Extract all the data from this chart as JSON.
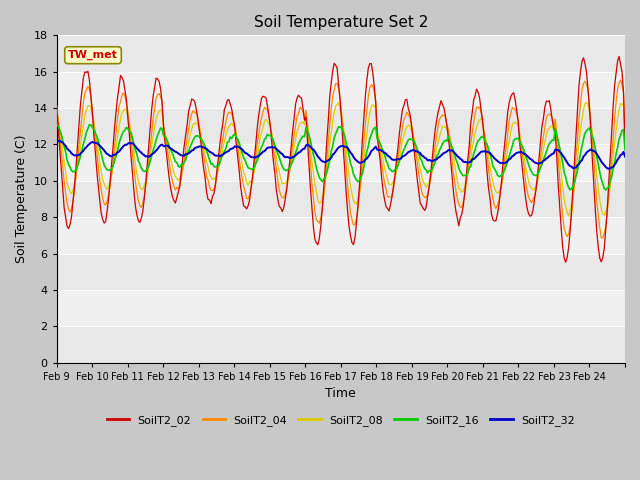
{
  "title": "Soil Temperature Set 2",
  "xlabel": "Time",
  "ylabel": "Soil Temperature (C)",
  "ylim": [
    0,
    18
  ],
  "yticks": [
    0,
    2,
    4,
    6,
    8,
    10,
    12,
    14,
    16,
    18
  ],
  "colors": {
    "SoilT2_02": "#cc0000",
    "SoilT2_04": "#ff8800",
    "SoilT2_08": "#ddcc00",
    "SoilT2_16": "#00cc00",
    "SoilT2_32": "#0000cc"
  },
  "xtick_labels": [
    "Feb 9",
    "Feb 10",
    "Feb 11",
    "Feb 12",
    "Feb 13",
    "Feb 14",
    "Feb 15",
    "Feb 16",
    "Feb 17",
    "Feb 18",
    "Feb 19",
    "Feb 20",
    "Feb 21",
    "Feb 22",
    "Feb 23",
    "Feb 24"
  ],
  "band_colors": [
    "#e8e8e8",
    "#f0f0f0"
  ],
  "annotation_text": "TW_met",
  "annotation_bg": "#ffffcc",
  "annotation_border": "#888800",
  "figsize": [
    6.4,
    4.8
  ],
  "dpi": 100
}
